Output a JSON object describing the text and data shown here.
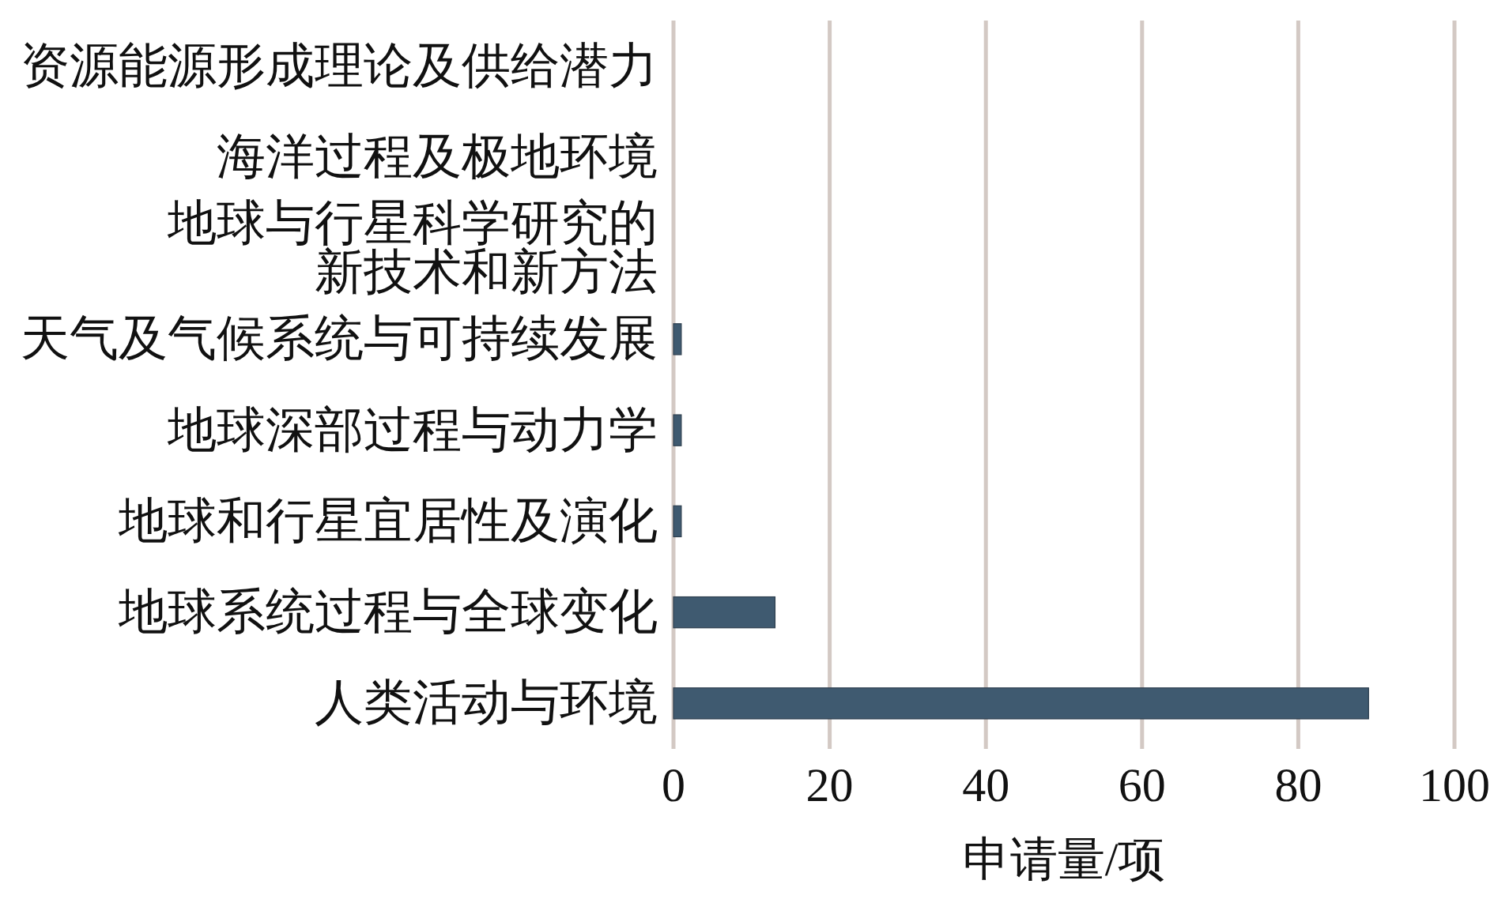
{
  "chart_data": {
    "type": "bar",
    "orientation": "horizontal",
    "categories": [
      "资源能源形成理论及供给潜力",
      "海洋过程及极地环境",
      "地球与行星科学研究的新技术和新方法",
      "天气及气候系统与可持续发展",
      "地球深部过程与动力学",
      "地球和行星宜居性及演化",
      "地球系统过程与全球变化",
      "人类活动与环境"
    ],
    "values": [
      0,
      0,
      0,
      1,
      1,
      1,
      13,
      89
    ],
    "color": "#3f5a70",
    "xlabel": "申请量/项",
    "xlim": [
      0,
      100
    ],
    "xticks": [
      0,
      20,
      40,
      60,
      80,
      100
    ],
    "grid": "x"
  }
}
